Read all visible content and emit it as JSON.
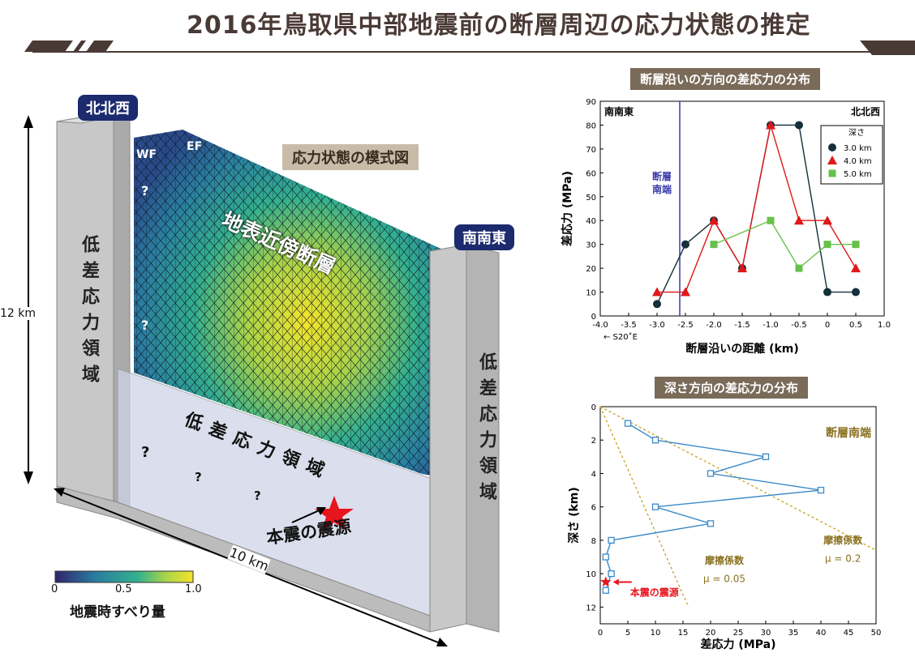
{
  "title": "2016年鳥取県中部地震前の断層周辺の応力状態の推定",
  "diagram": {
    "panel_label": "応力状態の模式図",
    "nnw": "北北西",
    "sse": "南南東",
    "wf": "WF",
    "ef": "EF",
    "near_surface": "地表近傍断層",
    "low_stress": "低差応力領域",
    "low_stress_left": "低差応力領域",
    "low_stress_right": "低差応力領域",
    "depth_label": "12 km",
    "length_label": "10 km",
    "hypocenter": "本震の震源",
    "q": "?",
    "colorbar_title": "地震時すべり量",
    "colorbar_ticks": [
      "0",
      "0.5",
      "1.0"
    ]
  },
  "chart_data": [
    {
      "type": "line",
      "title": "断層沿いの方向の差応力の分布",
      "xlabel": "断層沿いの距離 (km)",
      "ylabel": "差応力 (MPa)",
      "xlim": [
        -4.0,
        1.0
      ],
      "ylim": [
        0,
        90
      ],
      "xticks": [
        "-4.0",
        "-3.5",
        "-3.0",
        "-2.5",
        "-2.0",
        "-1.5",
        "-1.0",
        "-0.5",
        "0",
        "0.5",
        "1.0"
      ],
      "yticks": [
        "0",
        "10",
        "20",
        "30",
        "40",
        "50",
        "60",
        "70",
        "80",
        "90"
      ],
      "left_note": "南南東",
      "right_note": "北北西",
      "direction_note": "← S20˚E",
      "fault_end_label": "断層\n南端",
      "fault_end_x": -2.6,
      "legend_title": "深さ",
      "series": [
        {
          "name": "3.0 km",
          "color": "#14303a",
          "marker": "circle",
          "x": [
            -3.0,
            -2.5,
            -2.0,
            -1.5,
            -1.0,
            -0.5,
            0.0,
            0.5
          ],
          "y": [
            5,
            30,
            40,
            20,
            80,
            80,
            10,
            10
          ]
        },
        {
          "name": "4.0 km",
          "color": "#e01818",
          "marker": "triangle",
          "x": [
            -3.0,
            -2.5,
            -2.0,
            -1.5,
            -1.0,
            -0.5,
            0.0,
            0.5
          ],
          "y": [
            10,
            10,
            40,
            20,
            80,
            40,
            40,
            20
          ]
        },
        {
          "name": "5.0 km",
          "color": "#66c14a",
          "marker": "square",
          "x": [
            -2.0,
            -1.0,
            -0.5,
            0.0,
            0.5
          ],
          "y": [
            30,
            40,
            20,
            30,
            30
          ]
        }
      ]
    },
    {
      "type": "line",
      "title": "深さ方向の差応力の分布",
      "xlabel": "差応力 (MPa)",
      "ylabel": "深さ (km)",
      "xlim": [
        0,
        50
      ],
      "ylim": [
        0,
        13
      ],
      "xticks": [
        "0",
        "5",
        "10",
        "15",
        "20",
        "25",
        "30",
        "35",
        "40",
        "45",
        "50"
      ],
      "yticks": [
        "0",
        "2",
        "4",
        "6",
        "8",
        "10",
        "12"
      ],
      "annotation": "断層南端",
      "hypocenter_label": "本震の震源",
      "hypocenter": {
        "x": 1,
        "y": 10.5
      },
      "profile": {
        "x": [
          5,
          10,
          30,
          20,
          40,
          10,
          20,
          2,
          1,
          2,
          1
        ],
        "y": [
          1,
          2,
          3,
          4,
          5,
          6,
          7,
          8,
          9,
          10,
          11
        ]
      },
      "friction_lines": [
        {
          "label": "摩擦係数",
          "mu": "μ = 0.05",
          "x": [
            0,
            16
          ],
          "y": [
            0,
            12
          ]
        },
        {
          "label": "摩擦係数",
          "mu": "μ = 0.2",
          "x": [
            0,
            50
          ],
          "y": [
            0,
            8.6
          ]
        }
      ]
    }
  ]
}
